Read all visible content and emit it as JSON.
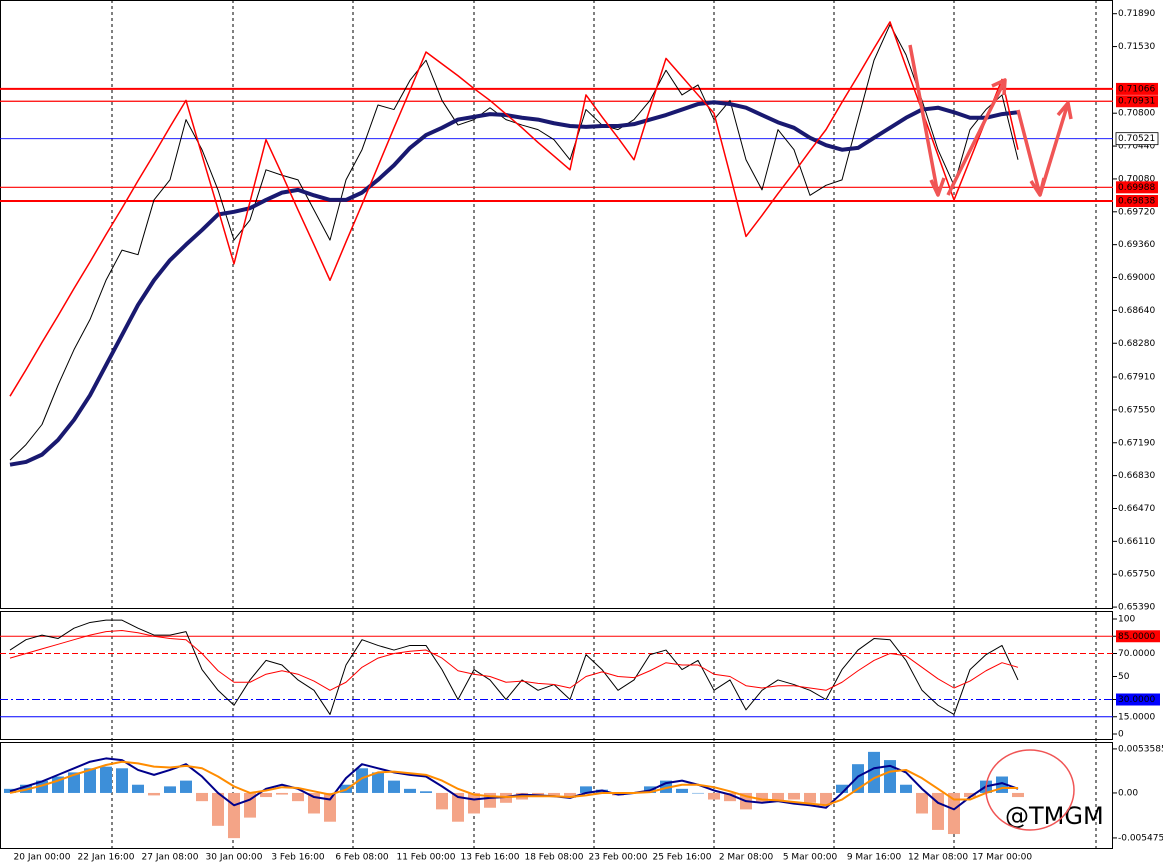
{
  "chart_data": [
    {
      "type": "line",
      "categories": [
        null,
        null,
        "20 Jan 00:00",
        null,
        null,
        null,
        "22 Jan 16:00",
        null,
        null,
        null,
        "27 Jan 08:00",
        null,
        null,
        null,
        "30 Jan 00:00",
        null,
        null,
        null,
        "3 Feb 16:00",
        null,
        null,
        null,
        "6 Feb 08:00",
        null,
        null,
        null,
        "11 Feb 00:00",
        null,
        null,
        null,
        "13 Feb 16:00",
        null,
        null,
        null,
        "18 Feb 08:00",
        null,
        null,
        null,
        "23 Feb 00:00",
        null,
        null,
        null,
        "25 Feb 16:00",
        null,
        null,
        null,
        "2 Mar 08:00",
        null,
        null,
        null,
        "5 Mar 00:00",
        null,
        null,
        null,
        "9 Mar 16:00",
        null,
        null,
        null,
        "12 Mar 08:00",
        null,
        null,
        null,
        "17 Mar 00:00",
        null
      ],
      "series": [
        {
          "color": "#000000",
          "values": [
            0.67,
            0.6717,
            0.6739,
            0.6782,
            0.6821,
            0.6854,
            0.6897,
            0.693,
            0.6925,
            0.6985,
            0.7007,
            0.7073,
            0.704,
            0.6996,
            0.6941,
            0.6963,
            0.7018,
            0.7012,
            0.7007,
            0.6974,
            0.6941,
            0.7007,
            0.704,
            0.7089,
            0.7084,
            0.7116,
            0.7138,
            0.7094,
            0.7067,
            0.7073,
            0.7086,
            0.7073,
            0.7067,
            0.7062,
            0.7051,
            0.7029,
            0.7084,
            0.7067,
            0.7062,
            0.7073,
            0.7094,
            0.7127,
            0.71,
            0.7111,
            0.7073,
            0.7094,
            0.7029,
            0.6996,
            0.7062,
            0.704,
            0.699,
            0.7001,
            0.7007,
            0.7073,
            0.7138,
            0.7177,
            0.7144,
            0.7094,
            0.704,
            0.7001,
            0.7062,
            0.7084,
            0.71,
            0.7029
          ]
        },
        {
          "color": "#191970",
          "values": [
            0.6695,
            0.6698,
            0.6706,
            0.6722,
            0.6744,
            0.6771,
            0.6804,
            0.6837,
            0.687,
            0.6897,
            0.6919,
            0.6936,
            0.6952,
            0.6969,
            0.6972,
            0.6976,
            0.6985,
            0.6993,
            0.6996,
            0.699,
            0.6985,
            0.6985,
            0.6993,
            0.7007,
            0.7023,
            0.7042,
            0.7056,
            0.7064,
            0.7073,
            0.7076,
            0.7079,
            0.7078,
            0.7075,
            0.7073,
            0.7069,
            0.7066,
            0.7065,
            0.7066,
            0.7066,
            0.7068,
            0.7073,
            0.7078,
            0.7084,
            0.709,
            0.7092,
            0.709,
            0.7086,
            0.7078,
            0.707,
            0.7064,
            0.7053,
            0.7045,
            0.704,
            0.7042,
            0.7053,
            0.7064,
            0.7075,
            0.7084,
            0.7086,
            0.7081,
            0.7075,
            0.7075,
            0.7079,
            0.7081
          ]
        },
        {
          "color": "#ff0000",
          "values": [
            0.677,
            0.6799,
            0.6829,
            0.6858,
            0.6888,
            0.6917,
            0.6947,
            0.6976,
            0.7006,
            0.7035,
            0.7065,
            0.7094,
            0.7034,
            0.6975,
            0.6915,
            0.6983,
            0.7051,
            0.7013,
            0.6974,
            0.6936,
            0.6897,
            0.6939,
            0.698,
            0.7022,
            0.7064,
            0.7105,
            0.7147,
            0.7134,
            0.7121,
            0.7107,
            0.7094,
            0.7079,
            0.7064,
            0.7048,
            0.7033,
            0.7018,
            0.71,
            0.7076,
            0.7053,
            0.7029,
            0.7085,
            0.714,
            0.712,
            0.71,
            0.708,
            0.7013,
            0.6945,
            0.6968,
            0.6992,
            0.7015,
            0.7039,
            0.7062,
            0.7092,
            0.7121,
            0.7151,
            0.718,
            0.7131,
            0.7083,
            0.7034,
            0.6985,
            0.7029,
            0.7073,
            0.7117,
            0.704
          ]
        }
      ],
      "levels": [
        {
          "value": 0.71066,
          "color": "#ff0000"
        },
        {
          "value": 0.70931,
          "color": "#ff0000"
        },
        {
          "value": 0.70521,
          "color": "#0000ff"
        },
        {
          "value": 0.69988,
          "color": "#ff0000"
        },
        {
          "value": 0.69838,
          "color": "#ff0000"
        }
      ],
      "ylim": [
        0.6538,
        0.7204
      ],
      "yticks": [
        {
          "value": 0.7189,
          "label": "0.71890"
        },
        {
          "value": 0.7153,
          "label": "0.71530"
        },
        {
          "value": 0.708,
          "label": "0.70800"
        },
        {
          "value": 0.7044,
          "label": "0.70440"
        },
        {
          "value": 0.7008,
          "label": "0.70080"
        },
        {
          "value": 0.6972,
          "label": "0.69720"
        },
        {
          "value": 0.6936,
          "label": "0.69360"
        },
        {
          "value": 0.69,
          "label": "0.69000"
        },
        {
          "value": 0.6864,
          "label": "0.68640"
        },
        {
          "value": 0.6828,
          "label": "0.68280"
        },
        {
          "value": 0.6791,
          "label": "0.67910"
        },
        {
          "value": 0.6755,
          "label": "0.67550"
        },
        {
          "value": 0.6719,
          "label": "0.67190"
        },
        {
          "value": 0.6683,
          "label": "0.66830"
        },
        {
          "value": 0.6647,
          "label": "0.66470"
        },
        {
          "value": 0.6611,
          "label": "0.66110"
        },
        {
          "value": 0.6575,
          "label": "0.65750"
        },
        {
          "value": 0.6539,
          "label": "0.65390"
        }
      ]
    },
    {
      "type": "line",
      "series": [
        {
          "color": "#000000",
          "values": [
            73,
            82,
            86,
            83,
            92,
            97,
            99,
            99,
            92,
            86,
            86,
            89,
            56,
            38,
            25,
            47,
            64,
            60,
            47,
            38,
            17,
            60,
            82,
            77,
            73,
            77,
            77,
            56,
            30,
            56,
            47,
            30,
            47,
            38,
            43,
            30,
            69,
            56,
            38,
            47,
            69,
            73,
            56,
            64,
            38,
            47,
            21,
            38,
            47,
            43,
            38,
            30,
            56,
            73,
            83,
            82,
            64,
            38,
            25,
            17,
            56,
            69,
            77,
            47
          ]
        },
        {
          "color": "#ff0000",
          "values": [
            66,
            70,
            74,
            78,
            82,
            86,
            89,
            90,
            88,
            85,
            83,
            82,
            70,
            55,
            45,
            45,
            52,
            55,
            52,
            46,
            38,
            45,
            58,
            66,
            70,
            72,
            73,
            66,
            55,
            52,
            50,
            45,
            46,
            44,
            43,
            40,
            50,
            54,
            50,
            49,
            55,
            62,
            60,
            60,
            52,
            50,
            42,
            40,
            42,
            42,
            40,
            38,
            45,
            55,
            64,
            70,
            68,
            58,
            48,
            40,
            46,
            55,
            62,
            58
          ]
        }
      ],
      "ylim": [
        0,
        100
      ],
      "yticks": [
        100,
        {
          "value": 85,
          "label": "85.0000"
        },
        {
          "value": 70,
          "label": "70.0000"
        },
        50,
        {
          "value": 30,
          "label": "30.0000"
        },
        {
          "value": 15,
          "label": "15.0000"
        },
        0
      ]
    },
    {
      "type": "bar",
      "values": [
        0.0005,
        0.001,
        0.0015,
        0.002,
        0.0025,
        0.003,
        0.0032,
        0.003,
        0.001,
        -0.0003,
        0.0008,
        0.0015,
        -0.001,
        -0.004,
        -0.0055,
        -0.003,
        -0.0005,
        -0.0002,
        -0.001,
        -0.0025,
        -0.0035,
        0.001,
        0.003,
        0.0025,
        0.0015,
        0.0005,
        0.0002,
        -0.002,
        -0.0035,
        -0.0025,
        -0.0018,
        -0.0012,
        -0.0008,
        -0.0005,
        -0.0003,
        -0.0006,
        0.0008,
        0.0004,
        -0.0003,
        0.0,
        0.0008,
        0.0015,
        0.0005,
        0.0,
        -0.0008,
        -0.001,
        -0.002,
        -0.0012,
        -0.001,
        -0.0008,
        -0.0012,
        -0.0015,
        0.001,
        0.0035,
        0.005,
        0.004,
        0.001,
        -0.0025,
        -0.0045,
        -0.005,
        -0.0005,
        0.0015,
        0.002,
        -0.0005
      ],
      "color_up": "#3d8fd9",
      "color_down": "#f4a487",
      "series": [
        {
          "color": "#00008b",
          "values": [
            0.0002,
            0.0008,
            0.0014,
            0.0022,
            0.003,
            0.0038,
            0.0042,
            0.004,
            0.0028,
            0.0022,
            0.0028,
            0.0035,
            0.002,
            0.0,
            -0.0015,
            -0.0008,
            0.0005,
            0.001,
            0.0005,
            -0.0005,
            -0.0008,
            0.0018,
            0.0035,
            0.003,
            0.0025,
            0.0022,
            0.002,
            0.0008,
            -0.0005,
            -0.0008,
            -0.0006,
            -0.0005,
            -0.0002,
            -0.0003,
            -0.0004,
            -0.0006,
            0.0,
            0.0003,
            -0.0002,
            0.0,
            0.0003,
            0.0012,
            0.0015,
            0.001,
            0.0003,
            -0.0002,
            -0.001,
            -0.0012,
            -0.001,
            -0.0013,
            -0.0015,
            -0.0018,
            0.0,
            0.002,
            0.003,
            0.0033,
            0.0025,
            0.0005,
            -0.0012,
            -0.002,
            -0.0005,
            0.0008,
            0.0012,
            0.0005
          ]
        },
        {
          "color": "#ff8c00",
          "values": [
            0.0,
            0.0004,
            0.0009,
            0.0015,
            0.0022,
            0.0028,
            0.0034,
            0.0038,
            0.0036,
            0.0032,
            0.0031,
            0.0033,
            0.003,
            0.002,
            0.0008,
            0.0,
            0.0003,
            0.0007,
            0.0006,
            0.0002,
            -0.0002,
            0.0004,
            0.0018,
            0.0025,
            0.0026,
            0.0024,
            0.0022,
            0.0015,
            0.0005,
            -0.0002,
            -0.0004,
            -0.0005,
            -0.0004,
            -0.0004,
            -0.0004,
            -0.0005,
            -0.0003,
            0.0,
            0.0,
            0.0,
            0.0001,
            0.0006,
            0.001,
            0.001,
            0.0007,
            0.0002,
            -0.0004,
            -0.0008,
            -0.0009,
            -0.0011,
            -0.0013,
            -0.0015,
            -0.0008,
            0.0005,
            0.0018,
            0.0026,
            0.0028,
            0.0018,
            0.0005,
            -0.0008,
            -0.0008,
            0.0,
            0.0006,
            0.0006
          ]
        }
      ],
      "ylim": [
        -0.0067,
        0.0062
      ],
      "yticks": [
        0.0053585,
        {
          "value": 0,
          "label": "0.00"
        },
        -0.005475
      ],
      "annotation": "@TMGM"
    }
  ]
}
